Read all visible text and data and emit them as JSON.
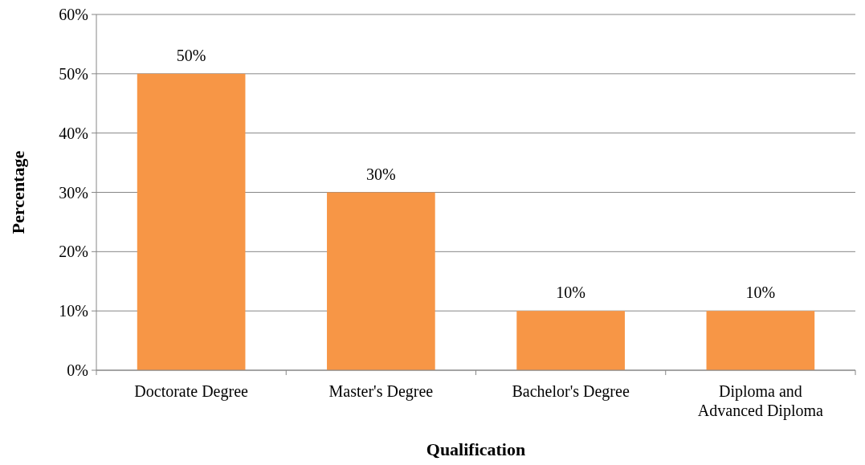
{
  "chart_data": {
    "type": "bar",
    "xlabel": "Qualification",
    "ylabel": "Percentage",
    "categories": [
      "Doctorate Degree",
      "Master's Degree",
      "Bachelor's Degree",
      "Diploma and Advanced Diploma"
    ],
    "values": [
      50,
      30,
      10,
      10
    ],
    "value_labels": [
      "50%",
      "30%",
      "10%",
      "10%"
    ],
    "color": "#f79646",
    "ylim": [
      0,
      60
    ],
    "yticks": [
      {
        "value": 0,
        "label": "0%"
      },
      {
        "value": 10,
        "label": "10%"
      },
      {
        "value": 20,
        "label": "20%"
      },
      {
        "value": 30,
        "label": "30%"
      },
      {
        "value": 40,
        "label": "40%"
      },
      {
        "value": 50,
        "label": "50%"
      },
      {
        "value": 60,
        "label": "60%"
      }
    ],
    "grid": "y"
  }
}
